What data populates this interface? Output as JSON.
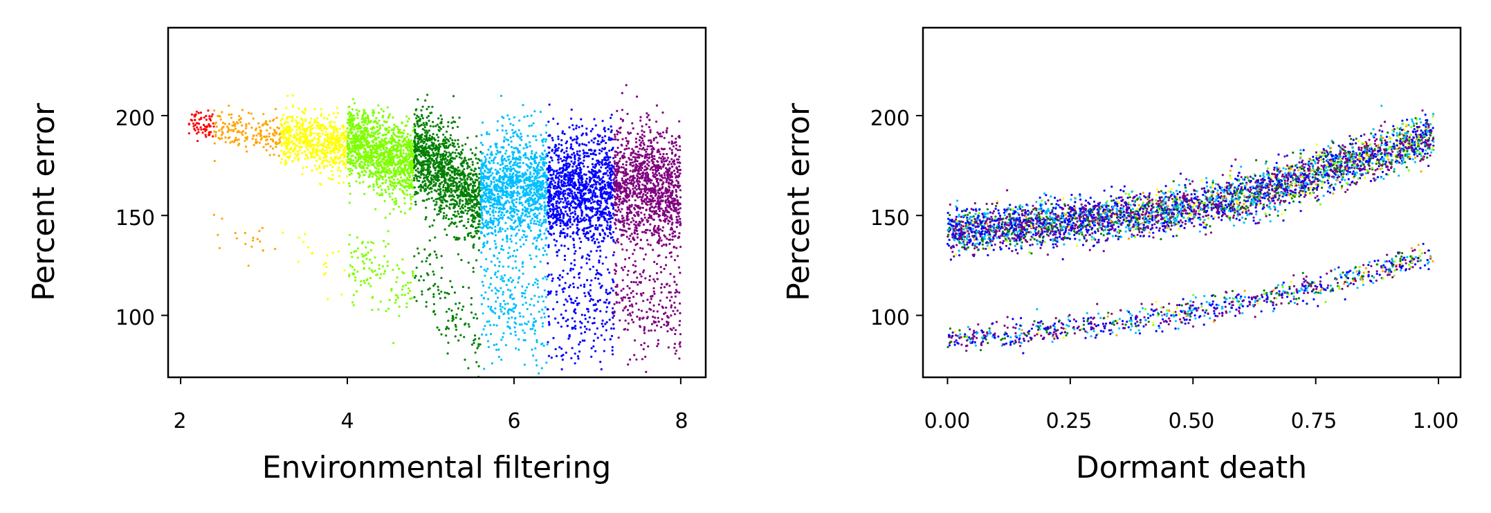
{
  "chart_data": [
    {
      "type": "scatter",
      "xlabel": "Environmental filtering",
      "ylabel": "Percent error",
      "xlim": [
        1.85,
        8.3
      ],
      "ylim": [
        69,
        244
      ],
      "xticks": [
        "2",
        "4",
        "6",
        "8"
      ],
      "yticks": [
        "100",
        "150",
        "200"
      ],
      "grid": false,
      "legend": "none",
      "series": [
        {
          "color": "#ff0000",
          "x_range": [
            2.1,
            2.4
          ],
          "upper": [
            [
              2.1,
              197
            ],
            [
              2.2,
              196
            ],
            [
              2.3,
              196
            ],
            [
              2.4,
              196
            ]
          ],
          "lower": []
        },
        {
          "color": "#ffa500",
          "x_range": [
            2.4,
            3.2
          ],
          "upper": [
            [
              2.4,
              193
            ],
            [
              2.6,
              193
            ],
            [
              2.8,
              193
            ],
            [
              3.0,
              191
            ],
            [
              3.2,
              190
            ]
          ],
          "lower": [
            [
              2.5,
              138
            ],
            [
              2.6,
              138
            ],
            [
              3.0,
              135
            ],
            [
              3.1,
              135
            ]
          ]
        },
        {
          "color": "#ffff00",
          "x_range": [
            3.2,
            4.0
          ],
          "upper": [
            [
              3.2,
              189
            ],
            [
              3.4,
              188
            ],
            [
              3.6,
              186
            ],
            [
              3.8,
              185
            ],
            [
              4.0,
              184
            ]
          ],
          "lower": [
            [
              3.4,
              136
            ],
            [
              3.6,
              132
            ],
            [
              3.8,
              127
            ],
            [
              4.0,
              124
            ]
          ]
        },
        {
          "color": "#7fff00",
          "x_range": [
            4.0,
            4.8
          ],
          "upper": [
            [
              4.0,
              188
            ],
            [
              4.2,
              184
            ],
            [
              4.4,
              180
            ],
            [
              4.6,
              177
            ],
            [
              4.8,
              174
            ]
          ],
          "lower": [
            [
              4.2,
              124
            ],
            [
              4.4,
              121
            ],
            [
              4.6,
              116
            ],
            [
              4.8,
              112
            ]
          ]
        },
        {
          "color": "#008000",
          "x_range": [
            4.8,
            5.6
          ],
          "upper": [
            [
              4.8,
              183
            ],
            [
              5.0,
              177
            ],
            [
              5.2,
              170
            ],
            [
              5.4,
              164
            ],
            [
              5.6,
              157
            ]
          ],
          "lower": [
            [
              4.8,
              124
            ],
            [
              5.0,
              113
            ],
            [
              5.2,
              105
            ],
            [
              5.4,
              96
            ],
            [
              5.6,
              90
            ]
          ]
        },
        {
          "color": "#00bfff",
          "x_range": [
            5.6,
            6.4
          ],
          "upper": [
            [
              5.6,
              163
            ],
            [
              6.0,
              163
            ],
            [
              6.4,
              163
            ]
          ],
          "lower": [
            [
              5.6,
              110
            ],
            [
              6.0,
              106
            ],
            [
              6.4,
              102
            ]
          ]
        },
        {
          "color": "#0000ff",
          "x_range": [
            6.4,
            7.2
          ],
          "upper": [
            [
              6.4,
              163
            ],
            [
              6.8,
              163
            ],
            [
              7.2,
              163
            ]
          ],
          "lower": [
            [
              6.4,
              106
            ],
            [
              6.8,
              104
            ],
            [
              7.2,
              102
            ]
          ]
        },
        {
          "color": "#800080",
          "x_range": [
            7.2,
            8.0
          ],
          "upper": [
            [
              7.2,
              164
            ],
            [
              7.6,
              164
            ],
            [
              8.0,
              164
            ]
          ],
          "lower": [
            [
              7.2,
              108
            ],
            [
              7.6,
              106
            ],
            [
              8.0,
              104
            ]
          ]
        }
      ]
    },
    {
      "type": "scatter",
      "xlabel": "Dormant death",
      "ylabel": "Percent error",
      "xlim": [
        -0.05,
        1.045
      ],
      "ylim": [
        69,
        244
      ],
      "xticks": [
        "0.00",
        "0.25",
        "0.50",
        "0.75",
        "1.00"
      ],
      "yticks": [
        "100",
        "150",
        "200"
      ],
      "grid": false,
      "legend": "none",
      "colors": [
        "#0000ff",
        "#800080",
        "#00bfff",
        "#008000",
        "#7fff00",
        "#ffff00",
        "#ffa500"
      ],
      "upper_band": [
        [
          0.0,
          142
        ],
        [
          0.2,
          146
        ],
        [
          0.4,
          150
        ],
        [
          0.6,
          159
        ],
        [
          0.8,
          175
        ],
        [
          1.0,
          190
        ]
      ],
      "lower_band": [
        [
          0.0,
          88
        ],
        [
          0.2,
          92
        ],
        [
          0.4,
          98
        ],
        [
          0.6,
          106
        ],
        [
          0.8,
          117
        ],
        [
          1.0,
          132
        ]
      ]
    }
  ]
}
